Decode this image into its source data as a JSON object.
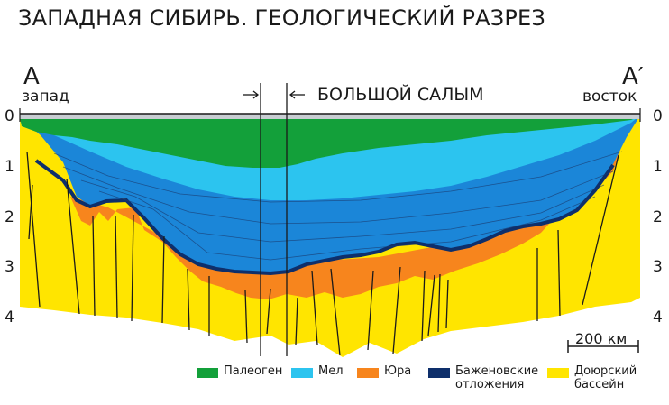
{
  "title": "ЗАПАДНАЯ СИБИРЬ. ГЕОЛОГИЧЕСКИЙ РАЗРЕЗ",
  "section": {
    "start_letter": "A",
    "end_letter": "A′",
    "west_label": "запад",
    "east_label": "восток",
    "field_label": "БОЛЬШОЙ САЛЫМ"
  },
  "depth_ticks": [
    "0",
    "1",
    "2",
    "3",
    "4"
  ],
  "scale_label": "200 км",
  "legend": [
    {
      "label": "Палеоген",
      "color": "#13a03a"
    },
    {
      "label": "Мел",
      "color": "#2cc4ef"
    },
    {
      "label": "Юра",
      "color": "#f7851d"
    },
    {
      "label": "Баженовские отложения",
      "line1": "Баженовские",
      "line2": "отложения",
      "color": "#0e2f6b"
    },
    {
      "label": "Доюрский бассейн",
      "line1": "Доюрский",
      "line2": "бассейн",
      "color": "#ffe500"
    }
  ],
  "colors": {
    "surface": "#c8cdd2",
    "deep_blue": "#1b86d8",
    "mid_blue": "#1ea4e8",
    "yellow": "#ffe500",
    "orange": "#f7851d",
    "bazhenov": "#0e2f6b"
  }
}
